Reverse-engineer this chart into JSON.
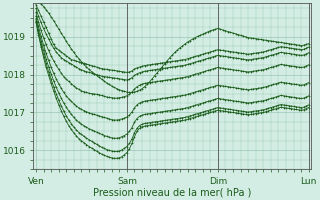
{
  "background_color": "#d4ede4",
  "line_color": "#1a5c1a",
  "marker": "+",
  "xlabel": "Pression niveau de la mer( hPa )",
  "xlabel_fontsize": 7,
  "ytick_labels": [
    "1016",
    "1017",
    "1018",
    "1019"
  ],
  "ylim": [
    1015.5,
    1019.9
  ],
  "xtick_positions": [
    0,
    36,
    72,
    108
  ],
  "xtick_labels": [
    "Ven",
    "Sam",
    "Dim",
    "Lun"
  ],
  "total_points": 109,
  "series": [
    [
      1019.85,
      1019.7,
      1019.55,
      1019.4,
      1019.25,
      1019.1,
      1018.95,
      1018.8,
      1018.7,
      1018.65,
      1018.6,
      1018.55,
      1018.5,
      1018.45,
      1018.4,
      1018.38,
      1018.36,
      1018.34,
      1018.32,
      1018.3,
      1018.28,
      1018.26,
      1018.24,
      1018.22,
      1018.2,
      1018.18,
      1018.16,
      1018.15,
      1018.14,
      1018.13,
      1018.12,
      1018.11,
      1018.1,
      1018.09,
      1018.08,
      1018.07,
      1018.06,
      1018.07,
      1018.1,
      1018.15,
      1018.18,
      1018.2,
      1018.22,
      1018.24,
      1018.25,
      1018.26,
      1018.27,
      1018.28,
      1018.29,
      1018.3,
      1018.31,
      1018.32,
      1018.33,
      1018.34,
      1018.35,
      1018.36,
      1018.37,
      1018.38,
      1018.39,
      1018.4,
      1018.42,
      1018.44,
      1018.46,
      1018.48,
      1018.5,
      1018.52,
      1018.54,
      1018.56,
      1018.58,
      1018.6,
      1018.62,
      1018.64,
      1018.66,
      1018.65,
      1018.64,
      1018.63,
      1018.62,
      1018.61,
      1018.6,
      1018.59,
      1018.58,
      1018.57,
      1018.56,
      1018.55,
      1018.54,
      1018.55,
      1018.56,
      1018.57,
      1018.58,
      1018.59,
      1018.6,
      1018.62,
      1018.64,
      1018.66,
      1018.68,
      1018.7,
      1018.72,
      1018.74,
      1018.73,
      1018.72,
      1018.71,
      1018.7,
      1018.69,
      1018.68,
      1018.67,
      1018.66,
      1018.67,
      1018.7,
      1018.73
    ],
    [
      1019.75,
      1019.55,
      1019.38,
      1019.22,
      1019.08,
      1018.95,
      1018.82,
      1018.7,
      1018.6,
      1018.52,
      1018.45,
      1018.4,
      1018.36,
      1018.32,
      1018.28,
      1018.24,
      1018.2,
      1018.16,
      1018.13,
      1018.1,
      1018.08,
      1018.06,
      1018.04,
      1018.02,
      1018.0,
      1017.98,
      1017.96,
      1017.95,
      1017.94,
      1017.93,
      1017.92,
      1017.91,
      1017.9,
      1017.89,
      1017.88,
      1017.87,
      1017.86,
      1017.88,
      1017.92,
      1017.98,
      1018.02,
      1018.05,
      1018.07,
      1018.09,
      1018.1,
      1018.11,
      1018.12,
      1018.13,
      1018.14,
      1018.15,
      1018.16,
      1018.17,
      1018.18,
      1018.19,
      1018.2,
      1018.21,
      1018.22,
      1018.23,
      1018.24,
      1018.25,
      1018.27,
      1018.29,
      1018.31,
      1018.33,
      1018.35,
      1018.37,
      1018.39,
      1018.41,
      1018.43,
      1018.45,
      1018.47,
      1018.49,
      1018.51,
      1018.5,
      1018.49,
      1018.48,
      1018.47,
      1018.46,
      1018.45,
      1018.44,
      1018.43,
      1018.42,
      1018.41,
      1018.4,
      1018.39,
      1018.4,
      1018.41,
      1018.42,
      1018.43,
      1018.44,
      1018.45,
      1018.47,
      1018.49,
      1018.51,
      1018.53,
      1018.55,
      1018.57,
      1018.59,
      1018.58,
      1018.57,
      1018.56,
      1018.55,
      1018.54,
      1018.53,
      1018.52,
      1018.51,
      1018.52,
      1018.55,
      1018.58
    ],
    [
      1019.65,
      1019.4,
      1019.18,
      1018.98,
      1018.8,
      1018.64,
      1018.5,
      1018.37,
      1018.25,
      1018.14,
      1018.04,
      1017.95,
      1017.88,
      1017.82,
      1017.76,
      1017.7,
      1017.65,
      1017.61,
      1017.57,
      1017.55,
      1017.53,
      1017.51,
      1017.5,
      1017.49,
      1017.48,
      1017.47,
      1017.45,
      1017.43,
      1017.41,
      1017.4,
      1017.39,
      1017.38,
      1017.38,
      1017.39,
      1017.4,
      1017.42,
      1017.44,
      1017.48,
      1017.54,
      1017.62,
      1017.68,
      1017.72,
      1017.75,
      1017.77,
      1017.78,
      1017.79,
      1017.8,
      1017.81,
      1017.82,
      1017.83,
      1017.84,
      1017.85,
      1017.86,
      1017.87,
      1017.88,
      1017.89,
      1017.9,
      1017.91,
      1017.92,
      1017.93,
      1017.95,
      1017.97,
      1017.99,
      1018.01,
      1018.03,
      1018.05,
      1018.07,
      1018.09,
      1018.11,
      1018.13,
      1018.15,
      1018.17,
      1018.19,
      1018.18,
      1018.17,
      1018.16,
      1018.15,
      1018.14,
      1018.13,
      1018.12,
      1018.11,
      1018.1,
      1018.09,
      1018.08,
      1018.07,
      1018.08,
      1018.09,
      1018.1,
      1018.11,
      1018.12,
      1018.13,
      1018.15,
      1018.17,
      1018.19,
      1018.21,
      1018.23,
      1018.25,
      1018.27,
      1018.26,
      1018.25,
      1018.24,
      1018.23,
      1018.22,
      1018.21,
      1018.2,
      1018.19,
      1018.2,
      1018.23,
      1018.26
    ],
    [
      1019.55,
      1019.28,
      1019.02,
      1018.78,
      1018.57,
      1018.38,
      1018.2,
      1018.04,
      1017.89,
      1017.76,
      1017.64,
      1017.53,
      1017.44,
      1017.36,
      1017.29,
      1017.23,
      1017.17,
      1017.12,
      1017.08,
      1017.05,
      1017.02,
      1016.99,
      1016.97,
      1016.95,
      1016.93,
      1016.91,
      1016.89,
      1016.87,
      1016.85,
      1016.83,
      1016.81,
      1016.8,
      1016.8,
      1016.81,
      1016.83,
      1016.85,
      1016.88,
      1016.93,
      1017.01,
      1017.12,
      1017.2,
      1017.25,
      1017.28,
      1017.3,
      1017.31,
      1017.32,
      1017.33,
      1017.34,
      1017.35,
      1017.36,
      1017.37,
      1017.38,
      1017.39,
      1017.4,
      1017.41,
      1017.42,
      1017.43,
      1017.44,
      1017.45,
      1017.46,
      1017.48,
      1017.5,
      1017.52,
      1017.54,
      1017.56,
      1017.58,
      1017.6,
      1017.62,
      1017.64,
      1017.66,
      1017.68,
      1017.7,
      1017.72,
      1017.71,
      1017.7,
      1017.69,
      1017.68,
      1017.67,
      1017.66,
      1017.65,
      1017.64,
      1017.63,
      1017.62,
      1017.61,
      1017.6,
      1017.61,
      1017.62,
      1017.63,
      1017.64,
      1017.65,
      1017.66,
      1017.68,
      1017.7,
      1017.72,
      1017.74,
      1017.76,
      1017.78,
      1017.8,
      1017.79,
      1017.78,
      1017.77,
      1017.76,
      1017.75,
      1017.74,
      1017.73,
      1017.72,
      1017.73,
      1017.76,
      1017.79
    ],
    [
      1019.48,
      1019.18,
      1018.9,
      1018.65,
      1018.42,
      1018.21,
      1018.02,
      1017.84,
      1017.67,
      1017.52,
      1017.38,
      1017.25,
      1017.14,
      1017.04,
      1016.95,
      1016.87,
      1016.8,
      1016.74,
      1016.69,
      1016.65,
      1016.61,
      1016.57,
      1016.54,
      1016.51,
      1016.48,
      1016.45,
      1016.42,
      1016.39,
      1016.37,
      1016.35,
      1016.33,
      1016.32,
      1016.32,
      1016.33,
      1016.36,
      1016.39,
      1016.43,
      1016.5,
      1016.6,
      1016.74,
      1016.84,
      1016.9,
      1016.93,
      1016.95,
      1016.96,
      1016.97,
      1016.98,
      1016.99,
      1017.0,
      1017.01,
      1017.02,
      1017.03,
      1017.04,
      1017.05,
      1017.06,
      1017.07,
      1017.08,
      1017.09,
      1017.1,
      1017.11,
      1017.13,
      1017.15,
      1017.17,
      1017.19,
      1017.21,
      1017.23,
      1017.25,
      1017.27,
      1017.29,
      1017.31,
      1017.33,
      1017.35,
      1017.37,
      1017.36,
      1017.35,
      1017.34,
      1017.33,
      1017.32,
      1017.31,
      1017.3,
      1017.29,
      1017.28,
      1017.27,
      1017.26,
      1017.25,
      1017.26,
      1017.27,
      1017.28,
      1017.29,
      1017.3,
      1017.31,
      1017.33,
      1017.35,
      1017.37,
      1017.39,
      1017.41,
      1017.43,
      1017.45,
      1017.44,
      1017.43,
      1017.42,
      1017.41,
      1017.4,
      1017.39,
      1017.38,
      1017.37,
      1017.38,
      1017.41,
      1017.44
    ],
    [
      1019.42,
      1019.1,
      1018.8,
      1018.54,
      1018.3,
      1018.08,
      1017.88,
      1017.68,
      1017.5,
      1017.33,
      1017.18,
      1017.04,
      1016.91,
      1016.8,
      1016.7,
      1016.61,
      1016.54,
      1016.47,
      1016.42,
      1016.37,
      1016.32,
      1016.28,
      1016.24,
      1016.2,
      1016.16,
      1016.12,
      1016.08,
      1016.05,
      1016.02,
      1016.0,
      1015.98,
      1015.97,
      1015.97,
      1015.98,
      1016.01,
      1016.05,
      1016.1,
      1016.18,
      1016.3,
      1016.46,
      1016.58,
      1016.65,
      1016.69,
      1016.71,
      1016.72,
      1016.73,
      1016.74,
      1016.75,
      1016.76,
      1016.77,
      1016.78,
      1016.79,
      1016.8,
      1016.81,
      1016.82,
      1016.83,
      1016.84,
      1016.85,
      1016.86,
      1016.87,
      1016.89,
      1016.91,
      1016.93,
      1016.95,
      1016.97,
      1016.99,
      1017.01,
      1017.03,
      1017.05,
      1017.07,
      1017.09,
      1017.11,
      1017.13,
      1017.12,
      1017.11,
      1017.1,
      1017.09,
      1017.08,
      1017.07,
      1017.06,
      1017.05,
      1017.04,
      1017.03,
      1017.02,
      1017.01,
      1017.02,
      1017.03,
      1017.04,
      1017.05,
      1017.06,
      1017.07,
      1017.09,
      1017.11,
      1017.13,
      1017.15,
      1017.17,
      1017.19,
      1017.21,
      1017.2,
      1017.19,
      1017.18,
      1017.17,
      1017.16,
      1017.15,
      1017.14,
      1017.13,
      1017.14,
      1017.17,
      1017.2
    ],
    [
      1019.38,
      1019.05,
      1018.74,
      1018.46,
      1018.2,
      1017.98,
      1017.77,
      1017.57,
      1017.38,
      1017.21,
      1017.05,
      1016.9,
      1016.77,
      1016.65,
      1016.55,
      1016.46,
      1016.38,
      1016.31,
      1016.25,
      1016.2,
      1016.15,
      1016.1,
      1016.06,
      1016.02,
      1015.98,
      1015.94,
      1015.9,
      1015.87,
      1015.84,
      1015.82,
      1015.8,
      1015.79,
      1015.79,
      1015.8,
      1015.83,
      1015.88,
      1015.94,
      1016.04,
      1016.18,
      1016.36,
      1016.5,
      1016.58,
      1016.62,
      1016.64,
      1016.65,
      1016.66,
      1016.67,
      1016.68,
      1016.69,
      1016.7,
      1016.71,
      1016.72,
      1016.73,
      1016.74,
      1016.75,
      1016.76,
      1016.77,
      1016.78,
      1016.79,
      1016.8,
      1016.82,
      1016.84,
      1016.86,
      1016.88,
      1016.9,
      1016.92,
      1016.94,
      1016.96,
      1016.98,
      1017.0,
      1017.02,
      1017.04,
      1017.06,
      1017.05,
      1017.04,
      1017.03,
      1017.02,
      1017.01,
      1017.0,
      1016.99,
      1016.98,
      1016.97,
      1016.96,
      1016.95,
      1016.94,
      1016.95,
      1016.96,
      1016.97,
      1016.98,
      1016.99,
      1017.0,
      1017.02,
      1017.04,
      1017.06,
      1017.08,
      1017.1,
      1017.12,
      1017.14,
      1017.13,
      1017.12,
      1017.11,
      1017.1,
      1017.09,
      1017.08,
      1017.07,
      1017.06,
      1017.07,
      1017.1,
      1017.13
    ],
    [
      1019.95,
      1019.92,
      1019.87,
      1019.8,
      1019.72,
      1019.63,
      1019.53,
      1019.43,
      1019.32,
      1019.21,
      1019.1,
      1018.99,
      1018.88,
      1018.78,
      1018.68,
      1018.59,
      1018.5,
      1018.42,
      1018.34,
      1018.27,
      1018.2,
      1018.14,
      1018.08,
      1018.03,
      1017.98,
      1017.93,
      1017.88,
      1017.83,
      1017.78,
      1017.74,
      1017.7,
      1017.66,
      1017.63,
      1017.6,
      1017.58,
      1017.56,
      1017.54,
      1017.53,
      1017.53,
      1017.54,
      1017.56,
      1017.59,
      1017.63,
      1017.68,
      1017.74,
      1017.81,
      1017.89,
      1017.97,
      1018.05,
      1018.13,
      1018.21,
      1018.29,
      1018.37,
      1018.45,
      1018.52,
      1018.59,
      1018.65,
      1018.71,
      1018.76,
      1018.81,
      1018.86,
      1018.9,
      1018.94,
      1018.98,
      1019.01,
      1019.04,
      1019.07,
      1019.1,
      1019.13,
      1019.16,
      1019.18,
      1019.2,
      1019.22,
      1019.2,
      1019.18,
      1019.16,
      1019.14,
      1019.12,
      1019.1,
      1019.08,
      1019.06,
      1019.04,
      1019.02,
      1019.0,
      1018.98,
      1018.97,
      1018.96,
      1018.95,
      1018.94,
      1018.93,
      1018.92,
      1018.91,
      1018.9,
      1018.89,
      1018.88,
      1018.87,
      1018.86,
      1018.85,
      1018.84,
      1018.83,
      1018.82,
      1018.81,
      1018.8,
      1018.79,
      1018.78,
      1018.77,
      1018.78,
      1018.8,
      1018.82
    ]
  ]
}
